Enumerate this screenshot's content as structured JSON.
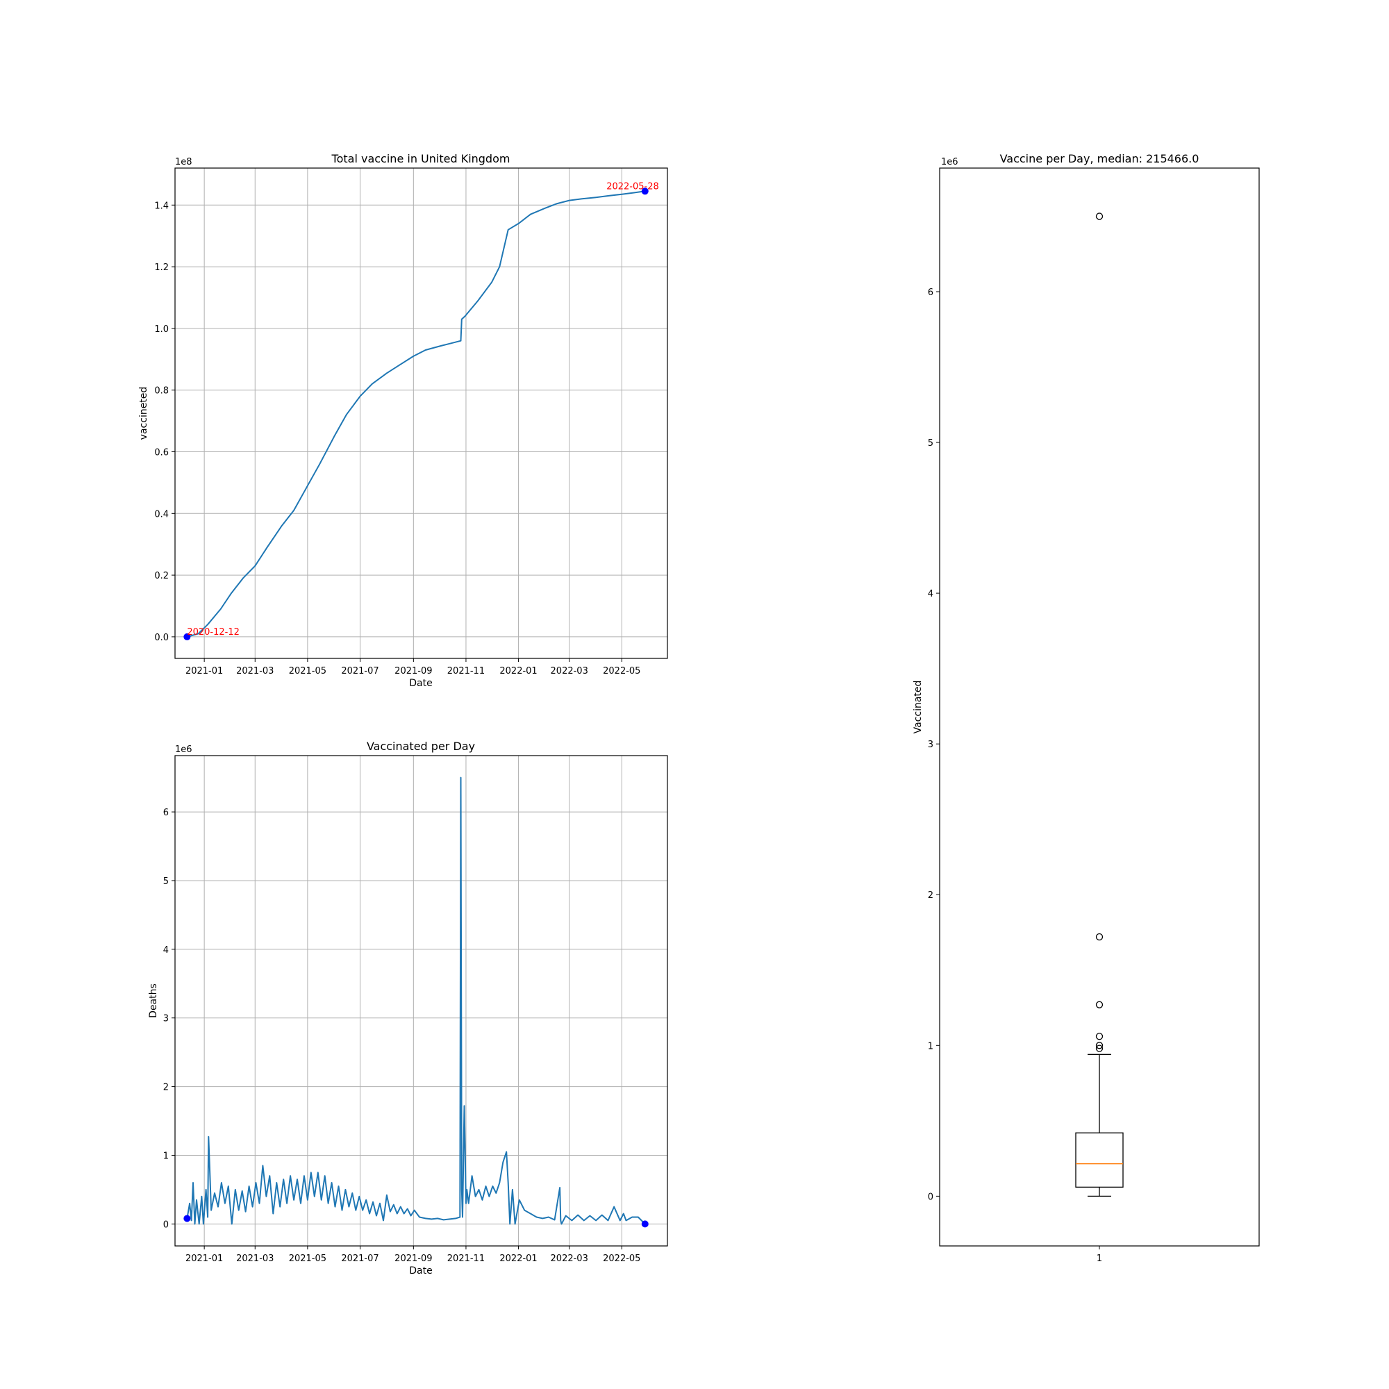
{
  "chart_data": [
    {
      "type": "line",
      "title": "Total vaccine in United Kingdom",
      "xlabel": "Date",
      "ylabel": "vaccineted",
      "y_offset_label": "1e8",
      "xlim": [
        "2020-11-28",
        "2022-06-23"
      ],
      "ylim": [
        -0.07,
        1.52
      ],
      "x_ticks": [
        "2021-01",
        "2021-03",
        "2021-05",
        "2021-07",
        "2021-09",
        "2021-11",
        "2022-01",
        "2022-03",
        "2022-05"
      ],
      "y_ticks": [
        "0.0",
        "0.2",
        "0.4",
        "0.6",
        "0.8",
        "1.0",
        "1.2",
        "1.4"
      ],
      "grid": true,
      "series": [
        {
          "color": "#1f77b4",
          "x": [
            "2020-12-12",
            "2020-12-25",
            "2021-01-05",
            "2021-01-20",
            "2021-02-01",
            "2021-02-15",
            "2021-03-01",
            "2021-03-15",
            "2021-04-01",
            "2021-04-15",
            "2021-05-01",
            "2021-05-15",
            "2021-06-01",
            "2021-06-15",
            "2021-07-01",
            "2021-07-15",
            "2021-08-01",
            "2021-08-15",
            "2021-09-01",
            "2021-09-15",
            "2021-10-01",
            "2021-10-15",
            "2021-10-26",
            "2021-10-27",
            "2021-10-31",
            "2021-11-15",
            "2021-12-01",
            "2021-12-10",
            "2021-12-20",
            "2022-01-01",
            "2022-01-15",
            "2022-02-01",
            "2022-02-15",
            "2022-03-01",
            "2022-03-15",
            "2022-04-01",
            "2022-04-15",
            "2022-05-01",
            "2022-05-15",
            "2022-05-28"
          ],
          "values": [
            0.0,
            0.01,
            0.04,
            0.09,
            0.14,
            0.19,
            0.23,
            0.29,
            0.36,
            0.41,
            0.49,
            0.56,
            0.65,
            0.72,
            0.78,
            0.82,
            0.855,
            0.88,
            0.91,
            0.93,
            0.942,
            0.952,
            0.96,
            1.03,
            1.04,
            1.09,
            1.15,
            1.2,
            1.32,
            1.34,
            1.37,
            1.39,
            1.405,
            1.415,
            1.42,
            1.425,
            1.43,
            1.435,
            1.44,
            1.445
          ]
        }
      ],
      "points": [
        {
          "x": "2020-12-12",
          "y": 0.0,
          "color": "#0000ff"
        },
        {
          "x": "2022-05-28",
          "y": 1.445,
          "color": "#0000ff"
        }
      ],
      "annotations": [
        {
          "text": "2020-12-12",
          "x": "2020-12-12",
          "y": 0.0,
          "color": "#ff0000"
        },
        {
          "text": "2022-05-28",
          "x": "2022-05-28",
          "y": 1.445,
          "color": "#ff0000"
        }
      ]
    },
    {
      "type": "line",
      "title": "Vaccinated per Day",
      "xlabel": "Date",
      "ylabel": "Deaths",
      "y_offset_label": "1e6",
      "xlim": [
        "2020-11-28",
        "2022-06-23"
      ],
      "ylim": [
        -0.32,
        6.82
      ],
      "x_ticks": [
        "2021-01",
        "2021-03",
        "2021-05",
        "2021-07",
        "2021-09",
        "2021-11",
        "2022-01",
        "2022-03",
        "2022-05"
      ],
      "y_ticks": [
        "0",
        "1",
        "2",
        "3",
        "4",
        "5",
        "6"
      ],
      "grid": true,
      "series": [
        {
          "color": "#1f77b4",
          "x": [
            "2020-12-12",
            "2020-12-15",
            "2020-12-17",
            "2020-12-19",
            "2020-12-21",
            "2020-12-23",
            "2020-12-26",
            "2020-12-29",
            "2020-12-31",
            "2021-01-03",
            "2021-01-05",
            "2021-01-06",
            "2021-01-09",
            "2021-01-13",
            "2021-01-17",
            "2021-01-21",
            "2021-01-25",
            "2021-01-29",
            "2021-02-02",
            "2021-02-06",
            "2021-02-10",
            "2021-02-14",
            "2021-02-18",
            "2021-02-22",
            "2021-02-26",
            "2021-03-02",
            "2021-03-06",
            "2021-03-10",
            "2021-03-14",
            "2021-03-18",
            "2021-03-22",
            "2021-03-26",
            "2021-03-30",
            "2021-04-03",
            "2021-04-07",
            "2021-04-11",
            "2021-04-15",
            "2021-04-19",
            "2021-04-23",
            "2021-04-27",
            "2021-05-01",
            "2021-05-05",
            "2021-05-09",
            "2021-05-13",
            "2021-05-17",
            "2021-05-21",
            "2021-05-25",
            "2021-05-29",
            "2021-06-02",
            "2021-06-06",
            "2021-06-10",
            "2021-06-14",
            "2021-06-18",
            "2021-06-22",
            "2021-06-26",
            "2021-06-30",
            "2021-07-04",
            "2021-07-08",
            "2021-07-12",
            "2021-07-16",
            "2021-07-20",
            "2021-07-24",
            "2021-07-28",
            "2021-08-01",
            "2021-08-05",
            "2021-08-09",
            "2021-08-13",
            "2021-08-17",
            "2021-08-21",
            "2021-08-25",
            "2021-08-29",
            "2021-09-02",
            "2021-09-08",
            "2021-09-15",
            "2021-09-22",
            "2021-09-29",
            "2021-10-06",
            "2021-10-13",
            "2021-10-20",
            "2021-10-25",
            "2021-10-26",
            "2021-10-27",
            "2021-10-28",
            "2021-10-30",
            "2021-11-01",
            "2021-11-02",
            "2021-11-04",
            "2021-11-08",
            "2021-11-12",
            "2021-11-16",
            "2021-11-20",
            "2021-11-24",
            "2021-11-28",
            "2021-12-02",
            "2021-12-06",
            "2021-12-10",
            "2021-12-14",
            "2021-12-18",
            "2021-12-20",
            "2021-12-22",
            "2021-12-25",
            "2021-12-28",
            "2022-01-02",
            "2022-01-08",
            "2022-01-15",
            "2022-01-22",
            "2022-01-29",
            "2022-02-05",
            "2022-02-12",
            "2022-02-18",
            "2022-02-19",
            "2022-02-20",
            "2022-02-25",
            "2022-03-04",
            "2022-03-11",
            "2022-03-18",
            "2022-03-25",
            "2022-04-01",
            "2022-04-08",
            "2022-04-15",
            "2022-04-22",
            "2022-04-29",
            "2022-05-03",
            "2022-05-06",
            "2022-05-13",
            "2022-05-20",
            "2022-05-28"
          ],
          "values": [
            0.08,
            0.3,
            0.05,
            0.6,
            0.0,
            0.35,
            0.0,
            0.4,
            0.0,
            0.5,
            0.1,
            1.27,
            0.2,
            0.45,
            0.25,
            0.6,
            0.3,
            0.55,
            0.0,
            0.5,
            0.2,
            0.48,
            0.18,
            0.55,
            0.25,
            0.6,
            0.3,
            0.85,
            0.4,
            0.7,
            0.15,
            0.6,
            0.25,
            0.65,
            0.3,
            0.7,
            0.35,
            0.65,
            0.3,
            0.7,
            0.35,
            0.75,
            0.4,
            0.75,
            0.35,
            0.7,
            0.3,
            0.6,
            0.25,
            0.55,
            0.2,
            0.5,
            0.25,
            0.45,
            0.2,
            0.4,
            0.2,
            0.35,
            0.15,
            0.32,
            0.12,
            0.3,
            0.05,
            0.42,
            0.18,
            0.28,
            0.15,
            0.25,
            0.15,
            0.22,
            0.12,
            0.2,
            0.1,
            0.08,
            0.07,
            0.08,
            0.06,
            0.07,
            0.08,
            0.1,
            6.5,
            0.5,
            0.1,
            1.72,
            0.3,
            0.5,
            0.3,
            0.7,
            0.4,
            0.5,
            0.35,
            0.55,
            0.4,
            0.55,
            0.45,
            0.6,
            0.9,
            1.05,
            0.6,
            0.0,
            0.5,
            0.0,
            0.35,
            0.2,
            0.15,
            0.1,
            0.08,
            0.1,
            0.06,
            0.53,
            0.05,
            0.0,
            0.12,
            0.05,
            0.13,
            0.05,
            0.12,
            0.05,
            0.13,
            0.05,
            0.25,
            0.05,
            0.15,
            0.05,
            0.1,
            0.1,
            0.0
          ],
          "x_extra_note": ""
        }
      ],
      "points": [
        {
          "x": "2020-12-12",
          "y": 0.08,
          "color": "#0000ff"
        },
        {
          "x": "2022-05-28",
          "y": 0.0,
          "color": "#0000ff"
        }
      ]
    },
    {
      "type": "box",
      "title": "Vaccine per Day, median: 215466.0",
      "xlabel": "",
      "ylabel": "Vaccinated",
      "y_offset_label": "1e6",
      "categories": [
        "1"
      ],
      "ylim": [
        -0.33,
        6.82
      ],
      "y_ticks": [
        "0",
        "1",
        "2",
        "3",
        "4",
        "5",
        "6"
      ],
      "grid": false,
      "box": {
        "whisker_low": 0.0,
        "q1": 0.06,
        "median": 0.215466,
        "q3": 0.42,
        "whisker_high": 0.94,
        "outliers": [
          0.98,
          1.0,
          1.06,
          1.27,
          1.72,
          6.5
        ],
        "box_color": "#000000",
        "median_color": "#ff7f0e"
      }
    }
  ]
}
